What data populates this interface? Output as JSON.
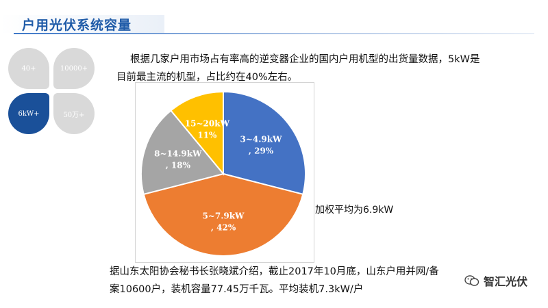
{
  "header": {
    "title": "户用光伏系统容量"
  },
  "tiles": [
    {
      "label": "40+",
      "active": false
    },
    {
      "label": "10000+",
      "active": false
    },
    {
      "label": "6kW+",
      "active": true
    },
    {
      "label": "50万+",
      "active": false
    }
  ],
  "intro": {
    "line1": "根据几家户用市场占有率高的逆变器企业的国内户用机型的出货量数据，5kW是",
    "line2": "目前最主流的机型，占比约在40%左右。"
  },
  "weighted_avg": "加权平均为6.9kW",
  "footer": {
    "line1": "据山东太阳协会秘书长张晓斌介绍，截止2017年10月底，山东户用并网/备",
    "line2": "案10600户，装机容量77.45万千瓦。平均装机7.3kW/户"
  },
  "brand": {
    "name": "智汇光伏",
    "icon": "wechat-icon"
  },
  "chart_data": {
    "type": "pie",
    "slices": [
      {
        "label": "3~4.9kW",
        "pct_label": ", 29%",
        "value": 29,
        "color": "#4472c4"
      },
      {
        "label": "5~7.9kW",
        "pct_label": ", 42%",
        "value": 42,
        "color": "#ed7d31"
      },
      {
        "label": "8~14.9kW",
        "pct_label": ", 18%",
        "value": 18,
        "color": "#a5a5a5"
      },
      {
        "label": "15~20kW",
        "pct_label": "11%",
        "value": 11,
        "color": "#ffc000"
      }
    ]
  }
}
